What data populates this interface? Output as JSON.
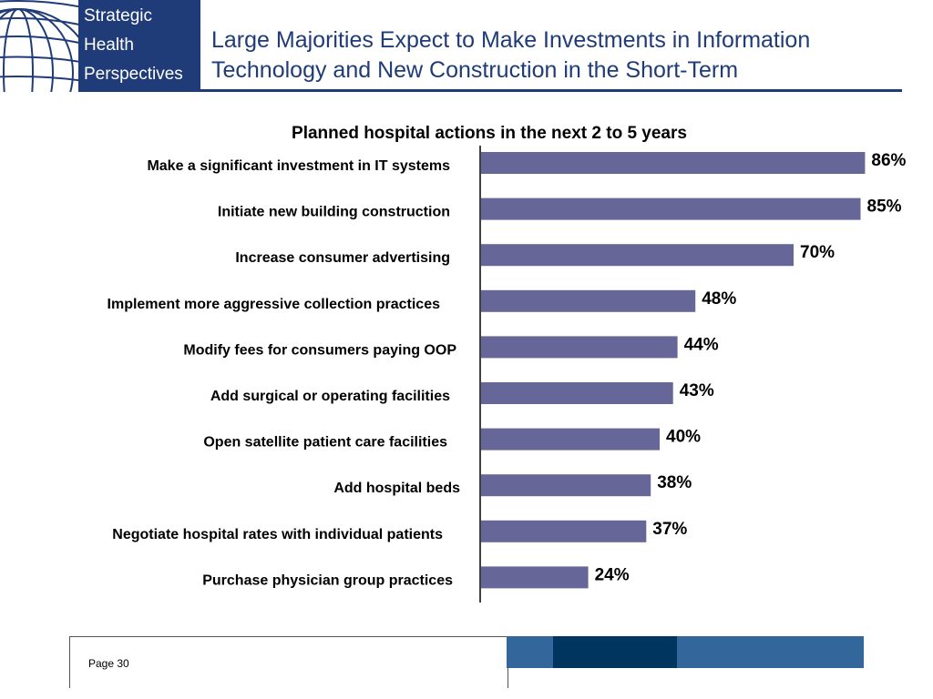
{
  "header": {
    "logo_lines": [
      "Strategic",
      "Health",
      "Perspectives"
    ],
    "title_line1": "Large Majorities Expect to Make Investments in Information",
    "title_line2": "Technology and New Construction in the Short-Term"
  },
  "colors": {
    "brand_navy": "#1f3b78",
    "bar": "#676699",
    "footer_mid_blue": "#33679c",
    "footer_dark_blue": "#00355f"
  },
  "chart_data": {
    "type": "bar",
    "orientation": "horizontal",
    "title": "Planned hospital actions in the next 2 to 5 years",
    "categories": [
      "Make a significant investment in IT systems",
      "Initiate new building construction",
      "Increase consumer advertising",
      "Implement more aggressive collection practices",
      "Modify fees  for consumers paying OOP",
      "Add surgical or operating facilities",
      "Open satellite patient care facilities",
      "Add hospital beds",
      "Negotiate hospital rates with individual patients",
      "Purchase physician group practices"
    ],
    "values": [
      86,
      85,
      70,
      48,
      44,
      43,
      40,
      38,
      37,
      24
    ],
    "value_labels": [
      "86%",
      "85%",
      "70%",
      "48%",
      "44%",
      "43%",
      "40%",
      "38%",
      "37%",
      "24%"
    ],
    "unit": "%",
    "xlim": [
      0,
      100
    ],
    "grid": false,
    "legend": "none"
  },
  "footer": {
    "page_label": "Page 30"
  }
}
